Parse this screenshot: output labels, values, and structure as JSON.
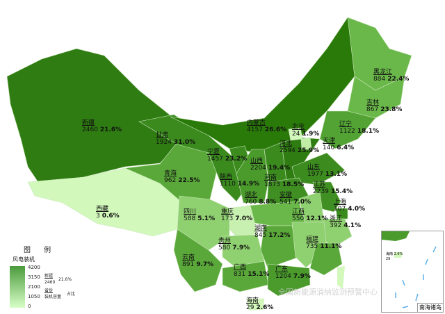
{
  "legend": {
    "title": "图 例",
    "subtitle": "风电装机",
    "ticks": [
      "4200",
      "3150",
      "2100",
      "1050",
      "0"
    ],
    "example_name": "新疆",
    "example_value": "2460",
    "example_pct": "21.6%",
    "key_top": "省份",
    "key_bottom": "装机容量",
    "key_right": "占比",
    "color_low": "#d8ffc8",
    "color_high": "#4b9a3c"
  },
  "provinces": [
    {
      "name": "新疆",
      "value": "2460",
      "pct": "21.6%",
      "color": "#2f7d12"
    },
    {
      "name": "西藏",
      "value": "3",
      "pct": "0.6%",
      "color": "#d2f8bc"
    },
    {
      "name": "青海",
      "value": "962",
      "pct": "22.5%",
      "color": "#5aa83a"
    },
    {
      "name": "甘肃",
      "value": "1924",
      "pct": "31.0%",
      "color": "#3a8a1e"
    },
    {
      "name": "内蒙古",
      "value": "4157",
      "pct": "26.6%",
      "color": "#2a7a0a"
    },
    {
      "name": "黑龙江",
      "value": "884",
      "pct": "22.4%",
      "color": "#6ab84a"
    },
    {
      "name": "吉林",
      "value": "867",
      "pct": "23.8%",
      "color": "#6ab84a"
    },
    {
      "name": "辽宁",
      "value": "1122",
      "pct": "18.1%",
      "color": "#52a334"
    },
    {
      "name": "宁夏",
      "value": "1457",
      "pct": "23.2%",
      "color": "#3b8b1f"
    },
    {
      "name": "陕西",
      "value": "1110",
      "pct": "14.9%",
      "color": "#4a9a2c"
    },
    {
      "name": "山西",
      "value": "2204",
      "pct": "19.4%",
      "color": "#3a8a1e"
    },
    {
      "name": "河北",
      "value": "2594",
      "pct": "25.9%",
      "color": "#2f7d12"
    },
    {
      "name": "北京",
      "value": "24",
      "pct": "1.9%",
      "color": "#d2f8bc"
    },
    {
      "name": "天津",
      "value": "140",
      "pct": "6.4%",
      "color": "#c0eea5"
    },
    {
      "name": "山东",
      "value": "1977",
      "pct": "13.1%",
      "color": "#3b8b1f"
    },
    {
      "name": "河南",
      "value": "1873",
      "pct": "18.5%",
      "color": "#3f8f22"
    },
    {
      "name": "江苏",
      "value": "2239",
      "pct": "15.4%",
      "color": "#3f8f22"
    },
    {
      "name": "安徽",
      "value": "541",
      "pct": "7.0%",
      "color": "#8fd070"
    },
    {
      "name": "上海",
      "value": "107",
      "pct": "4.0%",
      "color": "#3a8a1e"
    },
    {
      "name": "浙江",
      "value": "392",
      "pct": "4.1%",
      "color": "#8fd070"
    },
    {
      "name": "湖北",
      "value": "760",
      "pct": "8.8%",
      "color": "#6ab84a"
    },
    {
      "name": "重庆",
      "value": "173",
      "pct": "7.0%",
      "color": "#c8f0b0"
    },
    {
      "name": "四川",
      "value": "588",
      "pct": "5.1%",
      "color": "#8fd070"
    },
    {
      "name": "贵州",
      "value": "580",
      "pct": "7.9%",
      "color": "#8fd070"
    },
    {
      "name": "湖南",
      "value": "845",
      "pct": "17.2%",
      "color": "#5aa83a"
    },
    {
      "name": "江西",
      "value": "550",
      "pct": "12.1%",
      "color": "#8fd070"
    },
    {
      "name": "福建",
      "value": "735",
      "pct": "11.1%",
      "color": "#5aa83a"
    },
    {
      "name": "云南",
      "value": "891",
      "pct": "9.7%",
      "color": "#5aa83a"
    },
    {
      "name": "广西",
      "value": "831",
      "pct": "15.1%",
      "color": "#5aa83a"
    },
    {
      "name": "广东",
      "value": "1204",
      "pct": "7.9%",
      "color": "#4a9a2c"
    },
    {
      "name": "海南",
      "value": "29",
      "pct": "2.6%",
      "color": "#d2f8bc"
    }
  ],
  "taiwan_color": "#d2f8bc",
  "inset": {
    "label": "南海诸岛",
    "hainan_name": "海南",
    "hainan_value": "29",
    "hainan_pct": "2.6%"
  },
  "watermark": "全国新能源消纳监测预警中心"
}
